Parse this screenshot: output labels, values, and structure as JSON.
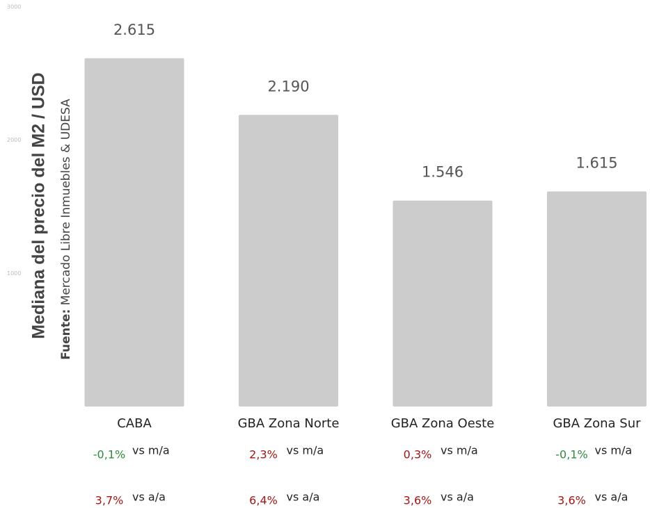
{
  "chart_data": {
    "type": "bar",
    "y_label": "Mediana del precio del M2 / USD",
    "source_label": "Fuente:",
    "source": "Mercado Libre Inmuebles & UDESA",
    "categories": [
      "CABA",
      "GBA Zona Norte",
      "GBA Zona Oeste",
      "GBA Zona Sur"
    ],
    "values": [
      2615,
      2190,
      1546,
      1615
    ],
    "value_labels": [
      "2.615",
      "2.190",
      "1.546",
      "1.615"
    ],
    "color": "#cccccc",
    "ylim": [
      0,
      3000
    ],
    "yticks": [
      1000,
      2000,
      3000
    ],
    "grid": false,
    "monthly_change": [
      {
        "text": "-0,1%",
        "color": "#2e8b3e"
      },
      {
        "text": "2,3%",
        "color": "#a31515"
      },
      {
        "text": "0,3%",
        "color": "#a31515"
      },
      {
        "text": "-0,1%",
        "color": "#2e8b3e"
      }
    ],
    "monthly_label": "vs m/a",
    "annual_change": [
      {
        "text": "3,7%",
        "color": "#a31515"
      },
      {
        "text": "6,4%",
        "color": "#a31515"
      },
      {
        "text": "3,6%",
        "color": "#a31515"
      },
      {
        "text": "3,6%",
        "color": "#a31515"
      }
    ],
    "annual_label": "vs a/a"
  }
}
